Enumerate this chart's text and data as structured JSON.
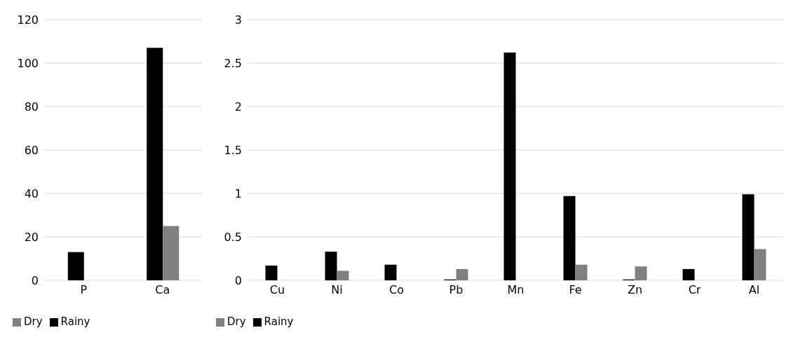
{
  "chart_data": [
    {
      "type": "bar",
      "categories": [
        "P",
        "Ca"
      ],
      "series": [
        {
          "name": "Rainy",
          "color": "#000000",
          "values": [
            13,
            107
          ]
        },
        {
          "name": "Dry",
          "color": "#808080",
          "values": [
            0,
            25
          ]
        }
      ],
      "ylim": [
        0,
        120
      ],
      "yticks": [
        0,
        20,
        40,
        60,
        80,
        100,
        120
      ],
      "grid": "y",
      "legend": "bottom left"
    },
    {
      "type": "bar",
      "categories": [
        "Cu",
        "Ni",
        "Co",
        "Pb",
        "Mn",
        "Fe",
        "Zn",
        "Cr",
        "Al"
      ],
      "series": [
        {
          "name": "Rainy",
          "color": "#000000",
          "values": [
            0.17,
            0.33,
            0.18,
            0.01,
            2.62,
            0.97,
            0.01,
            0.13,
            0.99
          ]
        },
        {
          "name": "Dry",
          "color": "#808080",
          "values": [
            0,
            0.11,
            0,
            0.13,
            0,
            0.18,
            0.16,
            0,
            0.36
          ]
        }
      ],
      "ylim": [
        0,
        3
      ],
      "yticks": [
        0,
        0.5,
        1,
        1.5,
        2,
        2.5,
        3
      ],
      "grid": "y",
      "legend": "bottom left"
    }
  ]
}
